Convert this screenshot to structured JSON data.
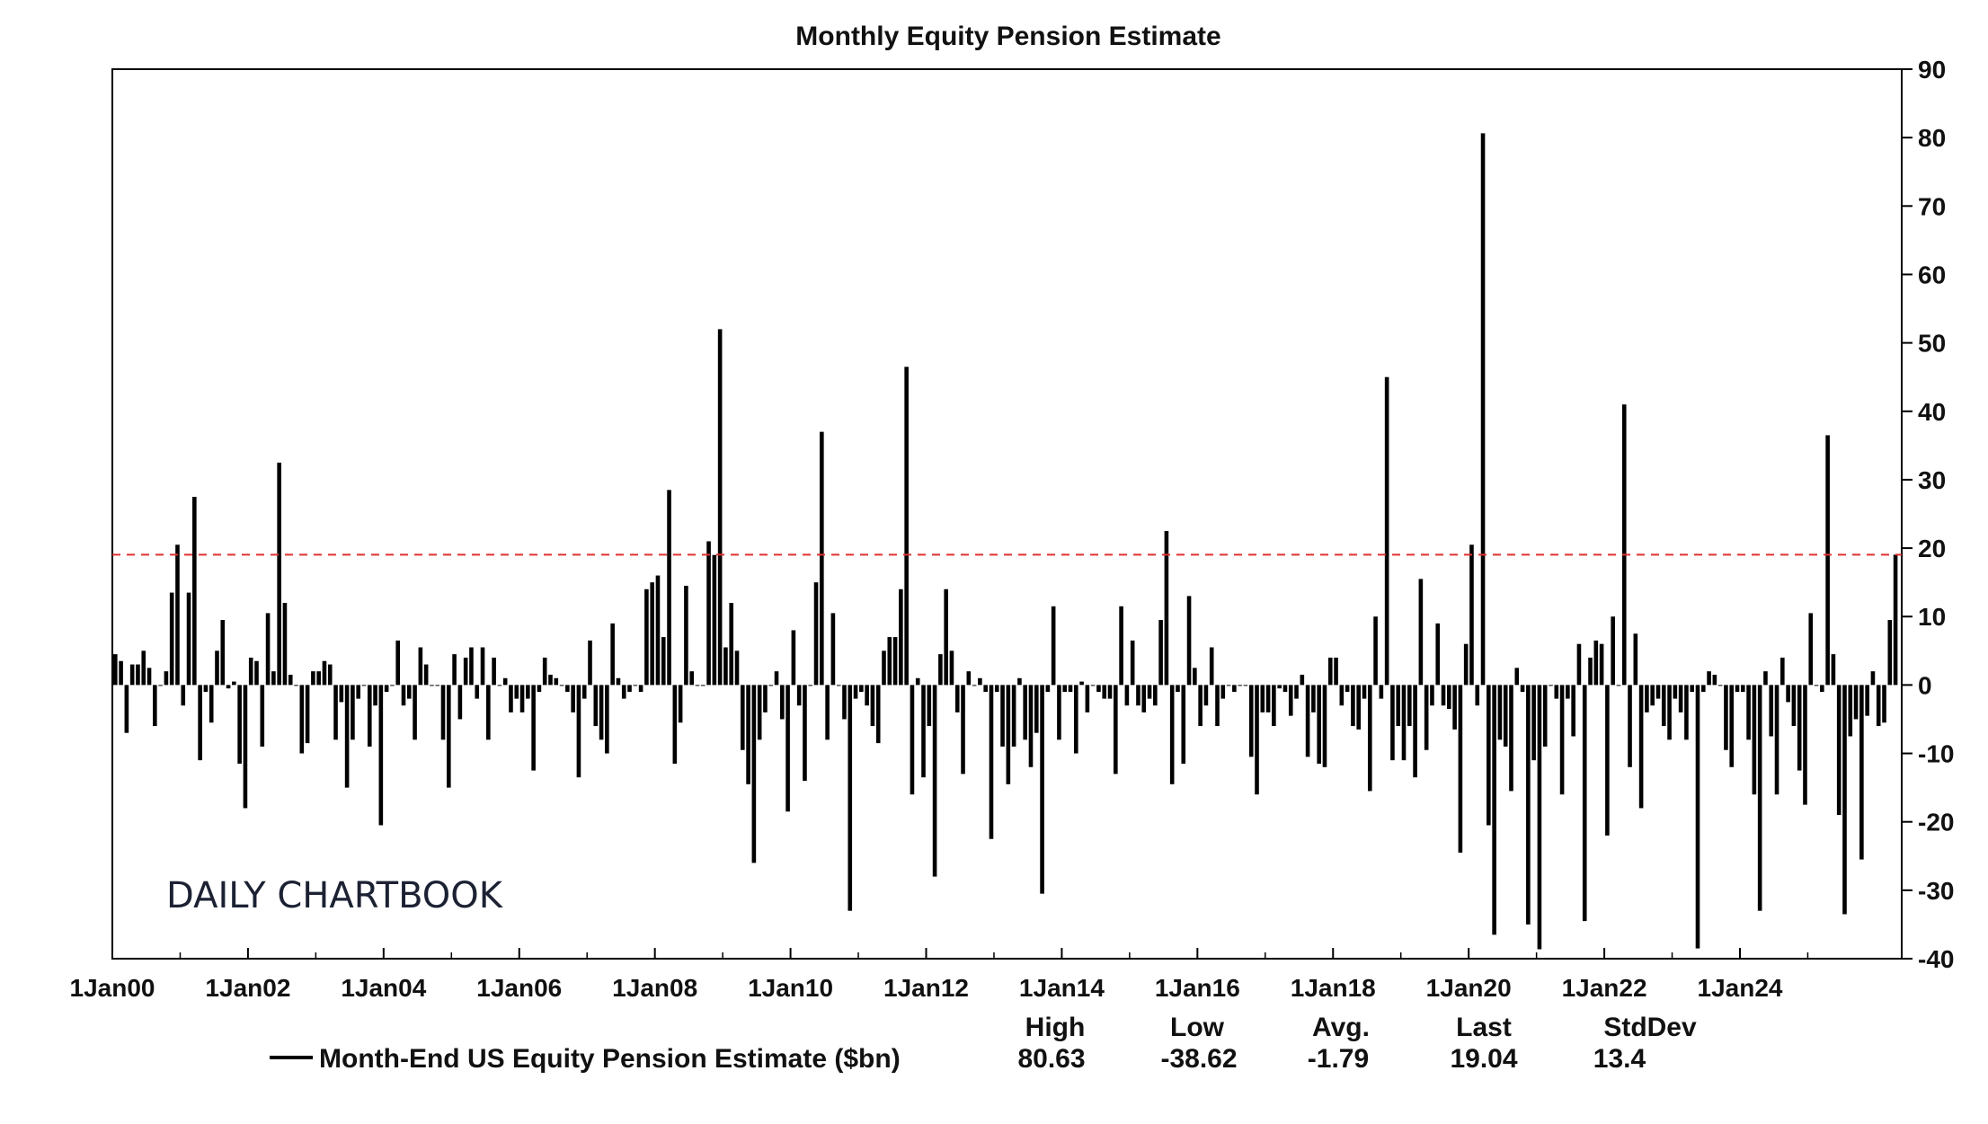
{
  "chart_data": {
    "type": "bar",
    "title": "Monthly Equity Pension Estimate",
    "frequency": "monthly",
    "x_tick_labels": [
      "1Jan00",
      "1Jan02",
      "1Jan04",
      "1Jan06",
      "1Jan08",
      "1Jan10",
      "1Jan12",
      "1Jan14",
      "1Jan16",
      "1Jan18",
      "1Jan20",
      "1Jan22",
      "1Jan24"
    ],
    "y_axis": {
      "side": "right",
      "ylim": [
        -40,
        90
      ],
      "ticks": [
        -40,
        -30,
        -20,
        -10,
        0,
        10,
        20,
        30,
        40,
        50,
        60,
        70,
        80,
        90
      ]
    },
    "reference_line": {
      "value": 19.04,
      "style": "dashed",
      "color": "#e03030"
    },
    "bar_color": "#000000",
    "grid": false,
    "series": [
      {
        "name": "Month-End US Equity Pension Estimate ($bn)",
        "values_by_year": {
          "2000": [
            4.5,
            3.5,
            -7,
            3,
            3,
            5,
            2.5,
            -6,
            0,
            2,
            13.5,
            20.5
          ],
          "2001": [
            -3,
            13.5,
            27.5,
            -11,
            -1,
            -5.5,
            5,
            9.5,
            -0.5,
            0.5,
            -11.5,
            -18
          ],
          "2002": [
            4,
            3.5,
            -9,
            10.5,
            2,
            32.5,
            12,
            1.5,
            0,
            -10,
            -8.5,
            2
          ],
          "2003": [
            2,
            3.5,
            3,
            -8,
            -2.5,
            -15,
            -8,
            -2,
            0,
            -9,
            -3,
            -20.5
          ],
          "2004": [
            -1,
            0,
            6.5,
            -3,
            -2,
            -8,
            5.5,
            3,
            0,
            0,
            -8,
            -15
          ],
          "2005": [
            4.5,
            -5,
            4,
            5.5,
            -2,
            5.5,
            -8,
            4,
            0,
            1,
            -4,
            -2
          ],
          "2006": [
            -4,
            -2,
            -12.5,
            -1,
            4,
            1.5,
            1,
            0,
            -1,
            -4,
            -13.5,
            -2
          ],
          "2007": [
            6.5,
            -6,
            -8,
            -10,
            9,
            1,
            -2,
            -1,
            0,
            -1,
            14,
            15
          ],
          "2008": [
            16,
            7,
            28.5,
            -11.5,
            -5.5,
            14.5,
            2,
            0,
            0,
            21,
            19,
            52
          ],
          "2009": [
            5.5,
            12,
            5,
            -9.5,
            -14.5,
            -26,
            -8,
            -4,
            0,
            2,
            -5,
            -18.5
          ],
          "2010": [
            8,
            -3,
            -14,
            0,
            15,
            37,
            -8,
            10.5,
            0,
            -5,
            -33,
            -2
          ],
          "2011": [
            -1,
            -3,
            -6,
            -8.5,
            5,
            7,
            7,
            14,
            46.5,
            -16,
            1,
            -13.5
          ],
          "2012": [
            -6,
            -28,
            4.5,
            14,
            5,
            -4,
            -13,
            2,
            0,
            1,
            -1,
            -22.5
          ],
          "2013": [
            -1,
            -9,
            -14.5,
            -9,
            1,
            -8,
            -12,
            -7,
            -30.5,
            -1,
            11.5,
            -8
          ],
          "2014": [
            -1,
            -1,
            -10,
            0.5,
            -4,
            0,
            -1,
            -2,
            -2,
            -13,
            11.5,
            -3
          ],
          "2015": [
            6.5,
            -3,
            -4,
            -2,
            -3,
            9.5,
            22.5,
            -14.5,
            -1,
            -11.5,
            13,
            2.5
          ],
          "2016": [
            -6,
            -3,
            5.5,
            -6,
            -2,
            0,
            -1,
            0,
            0,
            -10.5,
            -16,
            -4
          ],
          "2017": [
            -4,
            -6,
            -0.5,
            -1,
            -4.5,
            -2,
            1.5,
            -10.5,
            -4,
            -11.5,
            -12,
            4
          ],
          "2018": [
            4,
            -3,
            -1,
            -6,
            -6.5,
            -2,
            -15.5,
            10,
            -2,
            45,
            -11,
            -6
          ],
          "2019": [
            -11,
            -6,
            -13.5,
            15.5,
            -9.5,
            -3,
            9,
            -3,
            -3.5,
            -6.5,
            -24.5,
            6
          ],
          "2020": [
            20.5,
            -3,
            80.63,
            -20.5,
            -36.5,
            -8,
            -9,
            -15.5,
            2.5,
            -1,
            -35,
            -11
          ],
          "2021": [
            -38.62,
            -9,
            0,
            -2,
            -16,
            -2,
            -7.5,
            6,
            -34.5,
            4,
            6.5,
            6
          ],
          "2022": [
            -22,
            10,
            0,
            41,
            -12,
            7.5,
            -18,
            -4,
            -3,
            -2,
            -6,
            -8
          ],
          "2023": [
            -2,
            -4,
            -8,
            -1,
            -38.5,
            -1,
            2,
            1.5,
            0,
            -9.5,
            -12,
            -1
          ],
          "2024": [
            -1,
            -8,
            -16,
            -33,
            2,
            -7.5,
            -16,
            4,
            -2.5,
            -6,
            -12.5,
            -17.5
          ],
          "2025": [
            10.5,
            0,
            -1,
            36.5,
            4.5,
            -19,
            -33.5,
            -7.5,
            -5,
            -25.5,
            -4.5,
            2
          ],
          "2026": [
            -6,
            -5.5,
            9.5,
            19.04
          ]
        }
      }
    ],
    "legend": {
      "placement": "bottom",
      "series_label": "Month-End US Equity Pension Estimate ($bn)",
      "stat_headers": [
        "High",
        "Low",
        "Avg.",
        "Last",
        "StdDev"
      ],
      "stat_values": [
        "80.63",
        "-38.62",
        "-1.79",
        "19.04",
        "13.4"
      ]
    }
  },
  "watermark": "DAILY CHARTBOOK"
}
